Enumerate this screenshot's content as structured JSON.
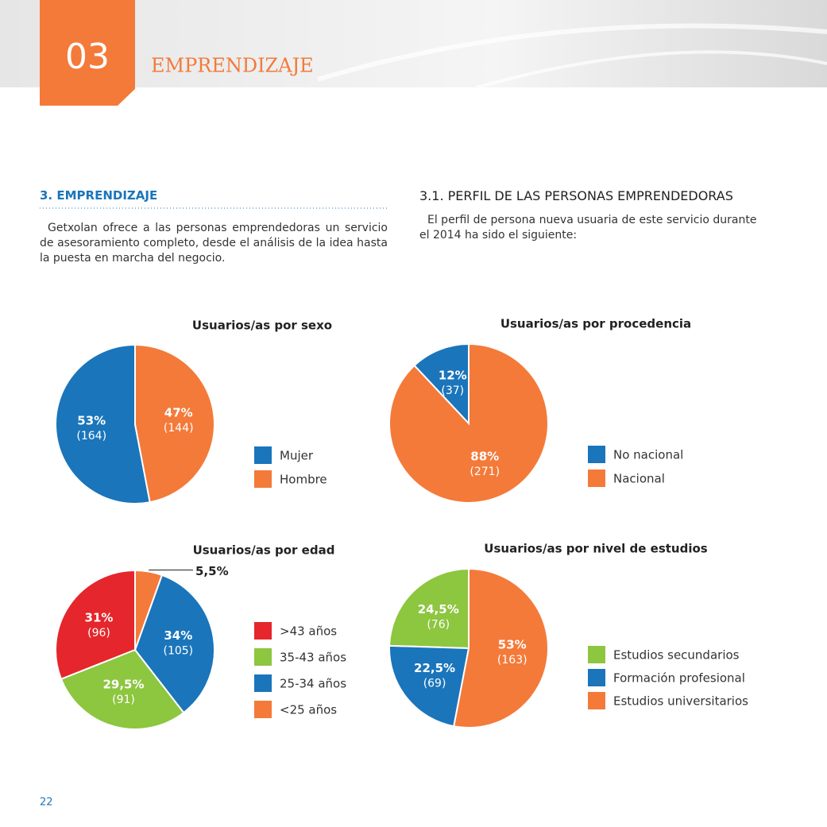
{
  "header": {
    "number": "03",
    "title": "EMPRENDIZAJE"
  },
  "sections": [
    {
      "heading": "3. EMPRENDIZAJE",
      "text": "Getxolan ofrece a las personas emprendedoras un servicio de asesoramiento completo, desde el análisis de la idea hasta la puesta en marcha del negocio."
    },
    {
      "heading": "3.1. PERFIL DE LAS PERSONAS EMPRENDEDORAS",
      "text": "El perfil de persona nueva usuaria de este servicio durante el 2014 ha sido el siguiente:"
    }
  ],
  "chart_data": [
    {
      "type": "pie",
      "title": "Usuarios/as por sexo",
      "categories": [
        "Mujer",
        "Hombre"
      ],
      "colors": [
        "#1a75bb",
        "#f47a3a"
      ],
      "values": [
        53,
        47
      ],
      "value_labels": [
        "53%",
        "47%"
      ],
      "counts": [
        164,
        144
      ],
      "count_labels": [
        "(164)",
        "(144)"
      ]
    },
    {
      "type": "pie",
      "title": "Usuarios/as por procedencia",
      "categories": [
        "No nacional",
        "Nacional"
      ],
      "colors": [
        "#1a75bb",
        "#f47a3a"
      ],
      "values": [
        12,
        88
      ],
      "value_labels": [
        "12%",
        "88%"
      ],
      "counts": [
        37,
        271
      ],
      "count_labels": [
        "(37)",
        "(271)"
      ]
    },
    {
      "type": "pie",
      "title": "Usuarios/as por edad",
      "categories": [
        ">43 años",
        "35-43 años",
        "25-34 años",
        "<25 años"
      ],
      "colors": [
        "#e5262c",
        "#8dc63f",
        "#1a75bb",
        "#f47a3a"
      ],
      "values": [
        31,
        29.5,
        34,
        5.5
      ],
      "value_labels": [
        "31%",
        "29,5%",
        "34%",
        "5,5%"
      ],
      "counts": [
        96,
        91,
        105,
        null
      ],
      "count_labels": [
        "(96)",
        "(91)",
        "(105)",
        null
      ]
    },
    {
      "type": "pie",
      "title": "Usuarios/as por nivel de estudios",
      "categories": [
        "Estudios secundarios",
        "Formación profesional",
        "Estudios universitarios"
      ],
      "colors": [
        "#8dc63f",
        "#1a75bb",
        "#f47a3a"
      ],
      "values": [
        24.5,
        22.5,
        53
      ],
      "value_labels": [
        "24,5%",
        "22,5%",
        "53%"
      ],
      "counts": [
        76,
        69,
        163
      ],
      "count_labels": [
        "(76)",
        "(69)",
        "(163)"
      ]
    }
  ],
  "page_number": "22"
}
